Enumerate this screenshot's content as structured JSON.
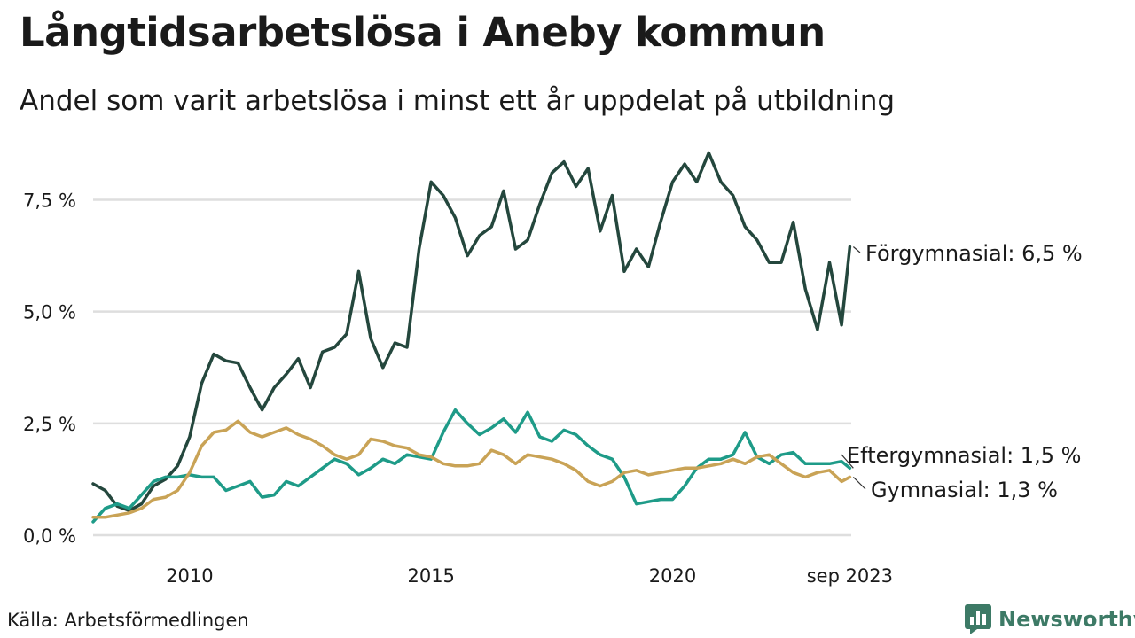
{
  "chart_data": {
    "type": "line",
    "title": "Långtidsarbetslösa i Aneby kommun",
    "subtitle": "Andel som varit arbetslösa i minst ett år uppdelat på utbildning",
    "xlabel": "",
    "ylabel": "",
    "ylim": [
      0,
      8.6
    ],
    "xlim": [
      2008.0,
      2023.7
    ],
    "yticks": [
      {
        "value": 0,
        "label": "0,0 %"
      },
      {
        "value": 2.5,
        "label": "2,5 %"
      },
      {
        "value": 5,
        "label": "5,0 %"
      },
      {
        "value": 7.5,
        "label": "7,5 %"
      }
    ],
    "xticks": [
      {
        "value": 2010,
        "label": "2010"
      },
      {
        "value": 2015,
        "label": "2015"
      },
      {
        "value": 2020,
        "label": "2020"
      },
      {
        "value": 2023.67,
        "label": "sep 2023"
      }
    ],
    "grid": true,
    "legend": "end-of-line labels, right",
    "series": [
      {
        "name": "Förgymnasial",
        "end_label": "Förgymnasial: 6,5 %",
        "color": "#24473d",
        "x": [
          2008.0,
          2008.25,
          2008.5,
          2008.75,
          2009.0,
          2009.25,
          2009.5,
          2009.75,
          2010.0,
          2010.25,
          2010.5,
          2010.75,
          2011.0,
          2011.25,
          2011.5,
          2011.75,
          2012.0,
          2012.25,
          2012.5,
          2012.75,
          2013.0,
          2013.25,
          2013.5,
          2013.75,
          2014.0,
          2014.25,
          2014.5,
          2014.75,
          2015.0,
          2015.25,
          2015.5,
          2015.75,
          2016.0,
          2016.25,
          2016.5,
          2016.75,
          2017.0,
          2017.25,
          2017.5,
          2017.75,
          2018.0,
          2018.25,
          2018.5,
          2018.75,
          2019.0,
          2019.25,
          2019.5,
          2019.75,
          2020.0,
          2020.25,
          2020.5,
          2020.75,
          2021.0,
          2021.25,
          2021.5,
          2021.75,
          2022.0,
          2022.25,
          2022.5,
          2022.75,
          2023.0,
          2023.25,
          2023.5,
          2023.67
        ],
        "values": [
          1.15,
          1.0,
          0.65,
          0.55,
          0.7,
          1.1,
          1.25,
          1.55,
          2.2,
          3.4,
          4.05,
          3.9,
          3.85,
          3.3,
          2.8,
          3.3,
          3.6,
          3.95,
          3.3,
          4.1,
          4.2,
          4.5,
          5.9,
          4.4,
          3.75,
          4.3,
          4.2,
          6.4,
          7.9,
          7.6,
          7.1,
          6.25,
          6.7,
          6.9,
          7.7,
          6.4,
          6.6,
          7.4,
          8.1,
          8.35,
          7.8,
          8.2,
          6.8,
          7.6,
          5.9,
          6.4,
          6.0,
          7.0,
          7.9,
          8.3,
          7.9,
          8.55,
          7.9,
          7.6,
          6.9,
          6.6,
          6.1,
          6.1,
          7.0,
          5.5,
          4.6,
          6.1,
          4.7,
          6.45
        ]
      },
      {
        "name": "Eftergymnasial",
        "end_label": "Eftergymnasial: 1,5 %",
        "color": "#1e9b88",
        "x": [
          2008.0,
          2008.25,
          2008.5,
          2008.75,
          2009.0,
          2009.25,
          2009.5,
          2009.75,
          2010.0,
          2010.25,
          2010.5,
          2010.75,
          2011.0,
          2011.25,
          2011.5,
          2011.75,
          2012.0,
          2012.25,
          2012.5,
          2012.75,
          2013.0,
          2013.25,
          2013.5,
          2013.75,
          2014.0,
          2014.25,
          2014.5,
          2014.75,
          2015.0,
          2015.25,
          2015.5,
          2015.75,
          2016.0,
          2016.25,
          2016.5,
          2016.75,
          2017.0,
          2017.25,
          2017.5,
          2017.75,
          2018.0,
          2018.25,
          2018.5,
          2018.75,
          2019.0,
          2019.25,
          2019.5,
          2019.75,
          2020.0,
          2020.25,
          2020.5,
          2020.75,
          2021.0,
          2021.25,
          2021.5,
          2021.75,
          2022.0,
          2022.25,
          2022.5,
          2022.75,
          2023.0,
          2023.25,
          2023.5,
          2023.67
        ],
        "values": [
          0.3,
          0.6,
          0.7,
          0.6,
          0.9,
          1.2,
          1.3,
          1.3,
          1.35,
          1.3,
          1.3,
          1.0,
          1.1,
          1.2,
          0.85,
          0.9,
          1.2,
          1.1,
          1.3,
          1.5,
          1.7,
          1.6,
          1.35,
          1.5,
          1.7,
          1.6,
          1.8,
          1.75,
          1.7,
          2.3,
          2.8,
          2.5,
          2.25,
          2.4,
          2.6,
          2.3,
          2.75,
          2.2,
          2.1,
          2.35,
          2.25,
          2.0,
          1.8,
          1.7,
          1.3,
          0.7,
          0.75,
          0.8,
          0.8,
          1.1,
          1.5,
          1.7,
          1.7,
          1.8,
          2.3,
          1.75,
          1.6,
          1.8,
          1.85,
          1.6,
          1.6,
          1.6,
          1.65,
          1.5
        ]
      },
      {
        "name": "Gymnasial",
        "end_label": "Gymnasial: 1,3 %",
        "color": "#c9a356",
        "x": [
          2008.0,
          2008.25,
          2008.5,
          2008.75,
          2009.0,
          2009.25,
          2009.5,
          2009.75,
          2010.0,
          2010.25,
          2010.5,
          2010.75,
          2011.0,
          2011.25,
          2011.5,
          2011.75,
          2012.0,
          2012.25,
          2012.5,
          2012.75,
          2013.0,
          2013.25,
          2013.5,
          2013.75,
          2014.0,
          2014.25,
          2014.5,
          2014.75,
          2015.0,
          2015.25,
          2015.5,
          2015.75,
          2016.0,
          2016.25,
          2016.5,
          2016.75,
          2017.0,
          2017.25,
          2017.5,
          2017.75,
          2018.0,
          2018.25,
          2018.5,
          2018.75,
          2019.0,
          2019.25,
          2019.5,
          2019.75,
          2020.0,
          2020.25,
          2020.5,
          2020.75,
          2021.0,
          2021.25,
          2021.5,
          2021.75,
          2022.0,
          2022.25,
          2022.5,
          2022.75,
          2023.0,
          2023.25,
          2023.5,
          2023.67
        ],
        "values": [
          0.4,
          0.4,
          0.45,
          0.5,
          0.6,
          0.8,
          0.85,
          1.0,
          1.4,
          2.0,
          2.3,
          2.35,
          2.55,
          2.3,
          2.2,
          2.3,
          2.4,
          2.25,
          2.15,
          2.0,
          1.8,
          1.7,
          1.8,
          2.15,
          2.1,
          2.0,
          1.95,
          1.8,
          1.75,
          1.6,
          1.55,
          1.55,
          1.6,
          1.9,
          1.8,
          1.6,
          1.8,
          1.75,
          1.7,
          1.6,
          1.45,
          1.2,
          1.1,
          1.2,
          1.4,
          1.45,
          1.35,
          1.4,
          1.45,
          1.5,
          1.5,
          1.55,
          1.6,
          1.7,
          1.6,
          1.75,
          1.8,
          1.6,
          1.4,
          1.3,
          1.4,
          1.45,
          1.2,
          1.3
        ]
      }
    ]
  },
  "source": "Källa: Arbetsförmedlingen",
  "brand": {
    "name": "Newsworthy",
    "color": "#3d7a66",
    "icon": "bar-chart-icon"
  }
}
